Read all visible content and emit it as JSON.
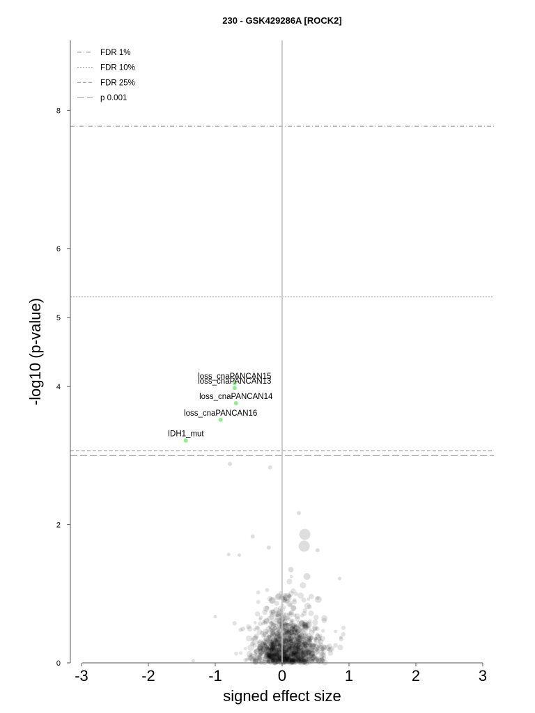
{
  "chart_data": {
    "type": "scatter",
    "title": "230 - GSK429286A [ROCK2]",
    "xlabel": "signed effect size",
    "ylabel": "-log10 (p-value)",
    "xlim": [
      -3,
      3
    ],
    "ylim": [
      0,
      8
    ],
    "x_ticks": [
      "-3",
      "-2",
      "-1",
      "0",
      "1",
      "2",
      "3"
    ],
    "y_ticks": [
      "0",
      "2",
      "4",
      "5",
      "6",
      "8"
    ],
    "grid": false,
    "legend_position": "top-left",
    "thresholds": [
      {
        "name": "FDR 1%",
        "y": 7.77,
        "style": "dashdot"
      },
      {
        "name": "FDR 10%",
        "y": 5.3,
        "style": "dotted"
      },
      {
        "name": "FDR 25%",
        "y": 3.07,
        "style": "dashed"
      },
      {
        "name": "p 0.001",
        "y": 3.0,
        "style": "longdash"
      }
    ],
    "highlighted": [
      {
        "label": "loss_cnaPANCAN15",
        "x": -0.71,
        "y": 4.05
      },
      {
        "label": "loss_cnaPANCAN13",
        "x": -0.71,
        "y": 3.98
      },
      {
        "label": "loss_cnaPANCAN14",
        "x": -0.69,
        "y": 3.76
      },
      {
        "label": "loss_cnaPANCAN16",
        "x": -0.92,
        "y": 3.52
      },
      {
        "label": "IDH1_mut",
        "x": -1.44,
        "y": 3.22
      }
    ],
    "highlight_color": "#90ee90",
    "background_points": [
      {
        "x": -0.78,
        "y": 2.88,
        "s": 3
      },
      {
        "x": -0.18,
        "y": 2.83,
        "s": 3
      },
      {
        "x": 0.25,
        "y": 2.17,
        "s": 3
      },
      {
        "x": 0.34,
        "y": 1.86,
        "s": 8
      },
      {
        "x": 0.33,
        "y": 1.69,
        "s": 8
      },
      {
        "x": -0.44,
        "y": 1.83,
        "s": 3
      },
      {
        "x": -0.2,
        "y": 1.67,
        "s": 3
      },
      {
        "x": 0.53,
        "y": 1.63,
        "s": 3
      },
      {
        "x": -0.8,
        "y": 1.57,
        "s": 2.5
      },
      {
        "x": -0.64,
        "y": 1.56,
        "s": 2.5
      },
      {
        "x": 0.13,
        "y": 1.35,
        "s": 4
      },
      {
        "x": 0.37,
        "y": 1.25,
        "s": 5
      },
      {
        "x": 0.86,
        "y": 1.22,
        "s": 2.5
      },
      {
        "x": 0.08,
        "y": 0.95,
        "s": 6
      },
      {
        "x": 0.54,
        "y": 0.92,
        "s": 5
      },
      {
        "x": -1.0,
        "y": 0.67,
        "s": 2.5
      },
      {
        "x": 0.88,
        "y": 0.37,
        "s": 2.5
      },
      {
        "x": -1.33,
        "y": 0.03,
        "s": 2.5
      }
    ],
    "point_color": "#000000"
  }
}
